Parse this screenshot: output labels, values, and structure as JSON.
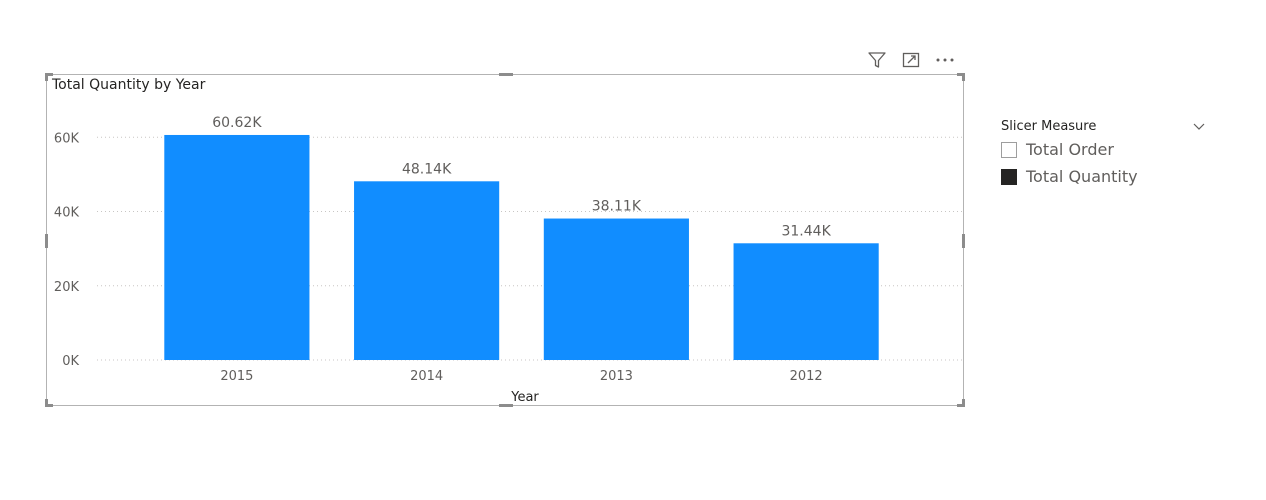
{
  "visual": {
    "title": "Total Quantity by Year",
    "header_icons": [
      "filter-icon",
      "focus-mode-icon",
      "more-options-icon"
    ]
  },
  "chart_data": {
    "type": "bar",
    "title": "Total Quantity by Year",
    "xlabel": "Year",
    "ylabel": "",
    "categories": [
      "2015",
      "2014",
      "2013",
      "2012"
    ],
    "values": [
      60620,
      48140,
      38110,
      31440
    ],
    "data_labels": [
      "60.62K",
      "48.14K",
      "38.11K",
      "31.44K"
    ],
    "yticks": [
      {
        "value": 0,
        "label": "0K"
      },
      {
        "value": 20000,
        "label": "20K"
      },
      {
        "value": 40000,
        "label": "40K"
      },
      {
        "value": 60000,
        "label": "60K"
      }
    ],
    "ylim": [
      0,
      66000
    ],
    "grid": "horizontal-dotted",
    "bar_color": "#118dff"
  },
  "slicer": {
    "title": "Slicer Measure",
    "items": [
      {
        "label": "Total Order",
        "checked": false
      },
      {
        "label": "Total Quantity",
        "checked": true
      }
    ]
  }
}
